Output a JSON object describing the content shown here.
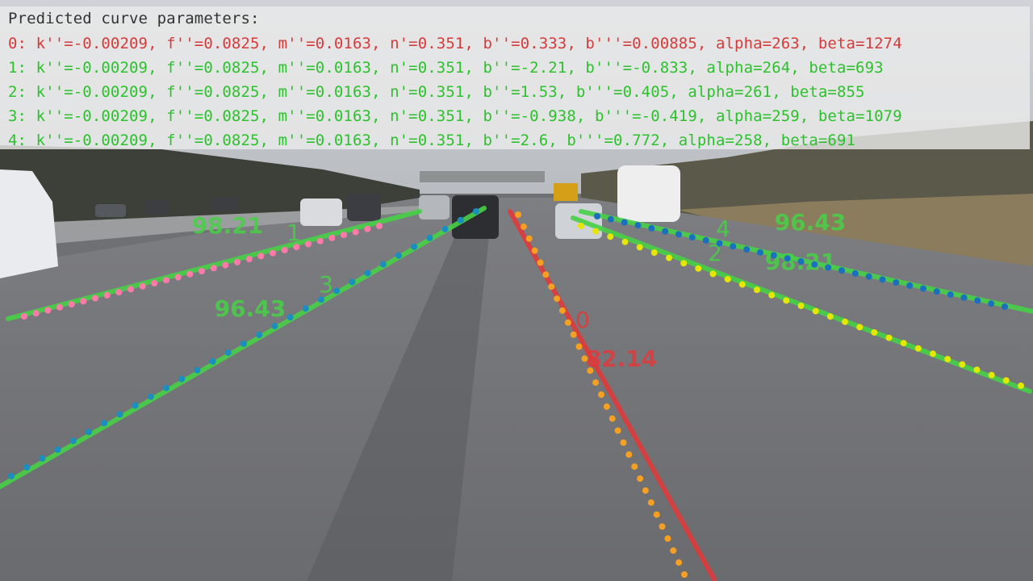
{
  "overlay": {
    "title": "Predicted curve parameters:",
    "lines": [
      "0: k''=-0.00209, f''=0.0825, m''=0.0163, n'=0.351, b''=0.333, b'''=0.00885, alpha=263, beta=1274",
      "1: k''=-0.00209, f''=0.0825, m''=0.0163, n'=0.351, b''=-2.21, b'''=-0.833, alpha=264, beta=693",
      "2: k''=-0.00209, f''=0.0825, m''=0.0163, n'=0.351, b''=1.53, b'''=0.405, alpha=261, beta=855",
      "3: k''=-0.00209, f''=0.0825, m''=0.0163, n'=0.351, b''=-0.938, b'''=-0.419, alpha=259, beta=1079",
      "4: k''=-0.00209, f''=0.0825, m''=0.0163, n'=0.351, b''=2.6, b'''=0.772, alpha=258, beta=691"
    ],
    "colors": {
      "lane0": "#d43c3c",
      "lane_other": "#2ec12e",
      "title": "#333333"
    }
  },
  "lanes": [
    {
      "id": "0",
      "score": "82.14",
      "color": "#e03a3a",
      "dot_color": "#f5a020"
    },
    {
      "id": "1",
      "score": "98.21",
      "color": "#47d147",
      "dot_color": "#ff7aa8"
    },
    {
      "id": "2",
      "score": "98.21",
      "color": "#47d147",
      "dot_color": "#e6e600"
    },
    {
      "id": "3",
      "score": "96.43",
      "color": "#47d147",
      "dot_color": "#1a8fbf"
    },
    {
      "id": "4",
      "score": "96.43",
      "color": "#47d147",
      "dot_color": "#1a6fbf"
    }
  ]
}
